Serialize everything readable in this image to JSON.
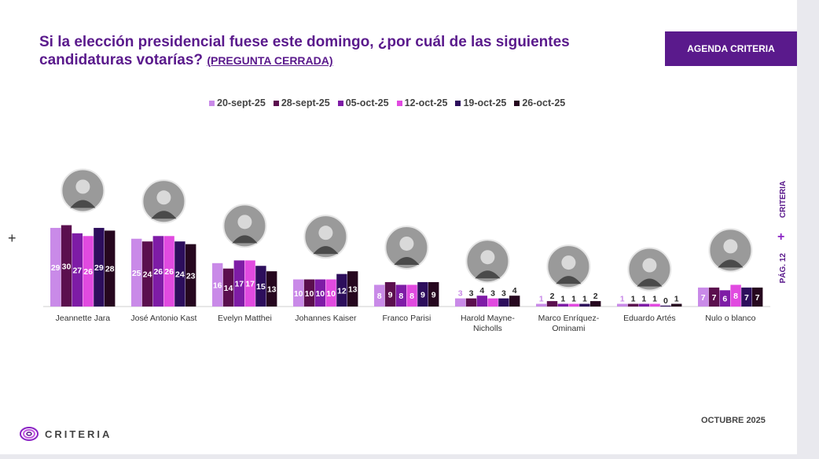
{
  "header": {
    "title": "Si la elección presidencial fuese este domingo, ¿por cuál de las siguientes candidaturas votarías?",
    "subtitle": "(PREGUNTA CERRADA)",
    "badge": "AGENDA CRITERIA"
  },
  "side": {
    "brand": "CRITERIA",
    "page": "PÁG. 12"
  },
  "footer": {
    "month": "OCTUBRE 2025",
    "logo": "CRITERIA"
  },
  "colors": [
    "#c98ae8",
    "#5b0f4e",
    "#7e1ca6",
    "#e14ae0",
    "#2d0e5c",
    "#26071f"
  ],
  "chart_data": {
    "type": "bar",
    "categories": [
      "Jeannette Jara",
      "José Antonio Kast",
      "Evelyn Matthei",
      "Johannes Kaiser",
      "Franco Parisi",
      "Harold Mayne-Nicholls",
      "Marco Enríquez-Ominami",
      "Eduardo Artés",
      "Nulo o blanco"
    ],
    "series": [
      {
        "name": "20-sept-25",
        "values": [
          29,
          25,
          16,
          10,
          8,
          3,
          1,
          1,
          7
        ]
      },
      {
        "name": "28-sept-25",
        "values": [
          30,
          24,
          14,
          10,
          9,
          3,
          2,
          1,
          7
        ]
      },
      {
        "name": "05-oct-25",
        "values": [
          27,
          26,
          17,
          10,
          8,
          4,
          1,
          1,
          6
        ]
      },
      {
        "name": "12-oct-25",
        "values": [
          26,
          26,
          17,
          10,
          8,
          3,
          1,
          1,
          8
        ]
      },
      {
        "name": "19-oct-25",
        "values": [
          29,
          24,
          15,
          12,
          9,
          3,
          1,
          0,
          7
        ]
      },
      {
        "name": "26-oct-25",
        "values": [
          28,
          23,
          13,
          13,
          9,
          4,
          2,
          1,
          7
        ]
      }
    ]
  }
}
